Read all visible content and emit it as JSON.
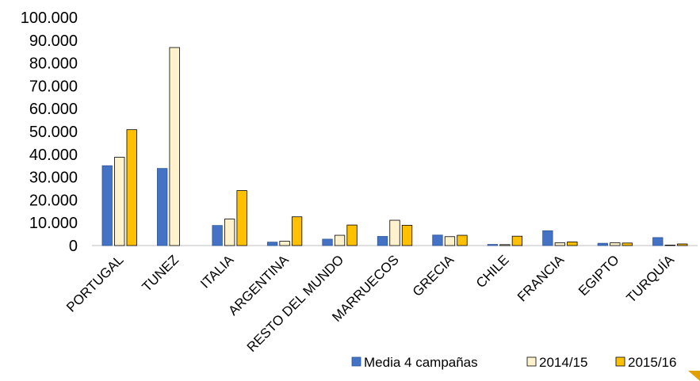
{
  "chart_data": {
    "type": "bar",
    "categories": [
      "PORTUGAL",
      "TUNEZ",
      "ITALIA",
      "ARGENTINA",
      "RESTO DEL MUNDO",
      "MARRUECOS",
      "GRECIA",
      "CHILE",
      "FRANCIA",
      "EGIPTO",
      "TURQUÍA"
    ],
    "series": [
      {
        "name": "Media 4 campañas",
        "color": "#4472C4",
        "border": "#2F5597",
        "values": [
          35000,
          33800,
          8800,
          1500,
          2800,
          4000,
          4600,
          500,
          6500,
          1000,
          3500
        ]
      },
      {
        "name": "2014/15",
        "color": "#FFF2CC",
        "border": "#000000",
        "values": [
          38700,
          86800,
          11600,
          1900,
          4500,
          11100,
          3900,
          400,
          1200,
          1200,
          200
        ]
      },
      {
        "name": "2015/16",
        "color": "#FFC000",
        "border": "#000000",
        "values": [
          50800,
          0,
          24100,
          12600,
          9000,
          8900,
          4500,
          4100,
          1600,
          1100,
          700
        ]
      }
    ],
    "y_tick_labels": [
      "0",
      "10.000",
      "20.000",
      "30.000",
      "40.000",
      "50.000",
      "60.000",
      "70.000",
      "80.000",
      "90.000",
      "100.000"
    ],
    "ylim": [
      0,
      100000
    ],
    "legend_position": "bottom-right",
    "grid": false
  }
}
